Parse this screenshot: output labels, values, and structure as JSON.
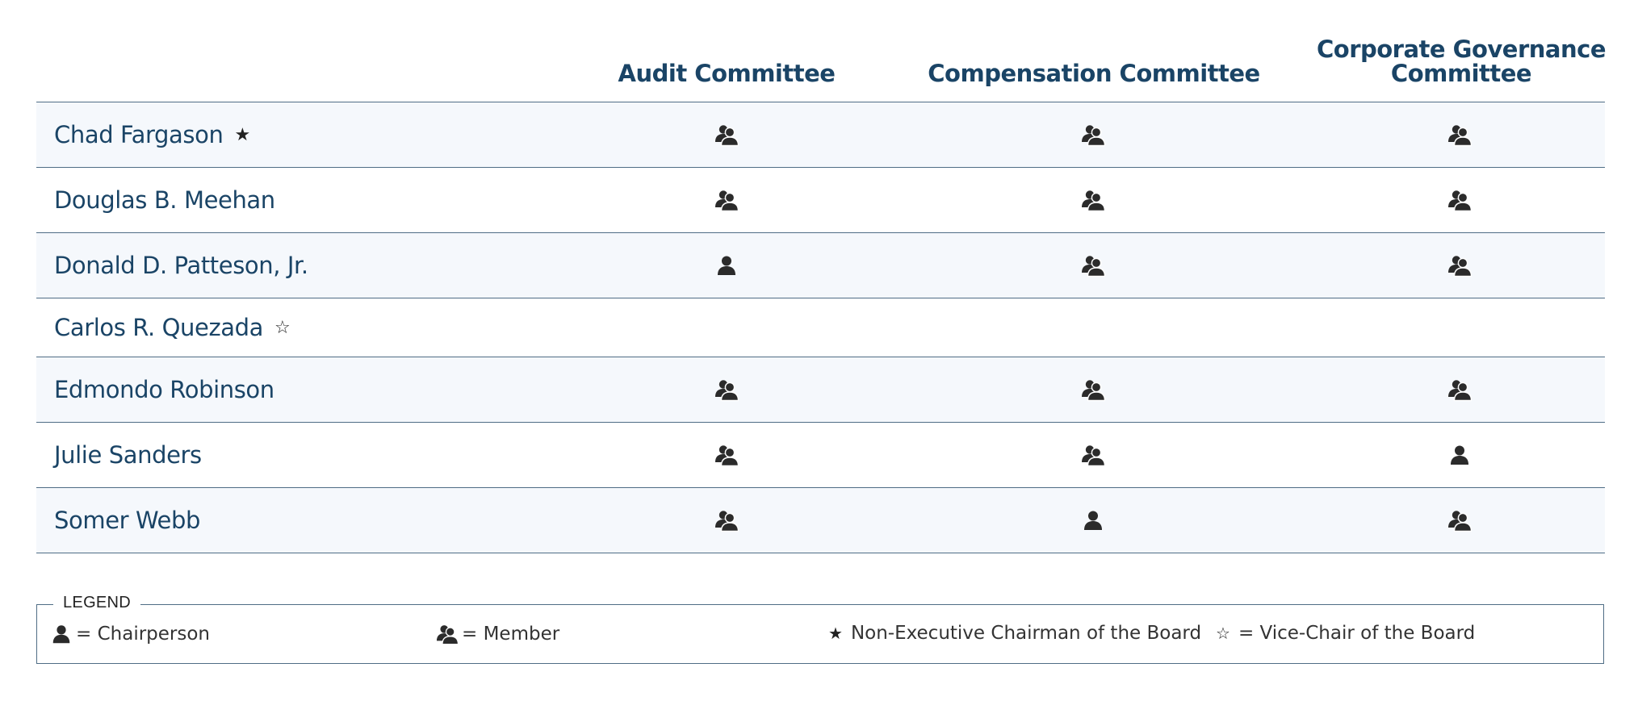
{
  "columns": [
    "Audit Committee",
    "Compensation Committee",
    "Corporate Governance Committee"
  ],
  "corporate_governance_lines": [
    "Corporate Governance",
    "Committee"
  ],
  "members": [
    {
      "name": "Chad Fargason",
      "mark": "★",
      "roles": [
        "member",
        "member",
        "member"
      ]
    },
    {
      "name": "Douglas B. Meehan",
      "mark": "",
      "roles": [
        "member",
        "member",
        "member"
      ]
    },
    {
      "name": "Donald D. Patteson, Jr.",
      "mark": "",
      "roles": [
        "chair",
        "member",
        "member"
      ]
    },
    {
      "name": "Carlos R. Quezada",
      "mark": "☆",
      "roles": [
        "",
        "",
        ""
      ]
    },
    {
      "name": "Edmondo Robinson",
      "mark": "",
      "roles": [
        "member",
        "member",
        "member"
      ]
    },
    {
      "name": "Julie Sanders",
      "mark": "",
      "roles": [
        "member",
        "member",
        "chair"
      ]
    },
    {
      "name": "Somer Webb",
      "mark": "",
      "roles": [
        "member",
        "chair",
        "member"
      ]
    }
  ],
  "legend": {
    "title": "LEGEND",
    "chair_label": "= Chairperson",
    "member_label": "= Member",
    "nonexec_star": "★",
    "nonexec_label": "Non-Executive Chairman of the Board",
    "vice_star": "☆",
    "vice_label": "= Vice-Chair of the Board"
  },
  "icons": {
    "chair": "person-icon",
    "member": "people-icon",
    "nonexec": "star-filled-icon",
    "vice": "star-outline-icon"
  },
  "colors": {
    "heading": "#1a4466",
    "rule": "#4f6d85",
    "shade": "#f5f8fc",
    "icon": "#2b2b2b"
  }
}
